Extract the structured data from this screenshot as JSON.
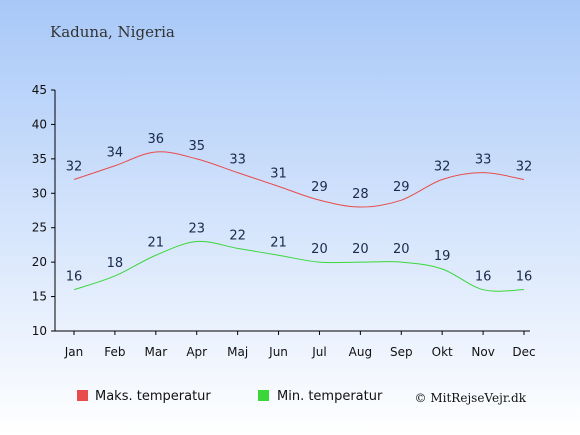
{
  "title": "Kaduna, Nigeria",
  "credit": "© MitRejseVejr.dk",
  "chart_data": {
    "type": "line",
    "categories": [
      "Jan",
      "Feb",
      "Mar",
      "Apr",
      "Maj",
      "Jun",
      "Jul",
      "Aug",
      "Sep",
      "Okt",
      "Nov",
      "Dec"
    ],
    "series": [
      {
        "name": "Maks. temperatur",
        "color": "#e84c4c",
        "values": [
          32,
          34,
          36,
          35,
          33,
          31,
          29,
          28,
          29,
          32,
          33,
          32
        ]
      },
      {
        "name": "Min. temperatur",
        "color": "#3ad63a",
        "values": [
          16,
          18,
          21,
          23,
          22,
          21,
          20,
          20,
          20,
          19,
          16,
          16
        ]
      }
    ],
    "ylim": [
      10,
      45
    ],
    "yticks": [
      10,
      15,
      20,
      25,
      30,
      35,
      40,
      45
    ],
    "legend_position": "bottom",
    "grid": false,
    "background": "gradient-blue-to-white"
  }
}
